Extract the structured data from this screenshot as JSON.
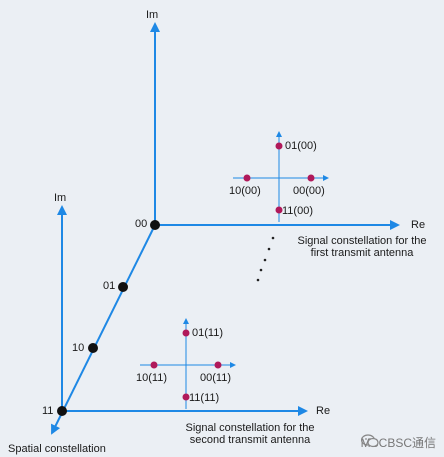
{
  "axes": {
    "im_top": "Im",
    "re_top": "Re",
    "im_left": "Im",
    "re_bottom": "Re"
  },
  "spatial": {
    "points": [
      "00",
      "01",
      "10",
      "11"
    ],
    "caption": "Spatial constellation"
  },
  "antenna1": {
    "points": [
      "01(00)",
      "10(00)",
      "00(00)",
      "11(00)"
    ],
    "caption_line1": "Signal constellation for the",
    "caption_line2": "first transmit antenna"
  },
  "antenna2": {
    "points": [
      "01(11)",
      "10(11)",
      "00(11)",
      "11(11)"
    ],
    "caption_line1": "Signal constellation for the",
    "caption_line2": "second transmit antenna"
  },
  "watermark": "MSCBSC通信",
  "colors": {
    "axis_blue": "#1e88e5",
    "point_magenta": "#b0195a",
    "point_black": "#111111"
  }
}
